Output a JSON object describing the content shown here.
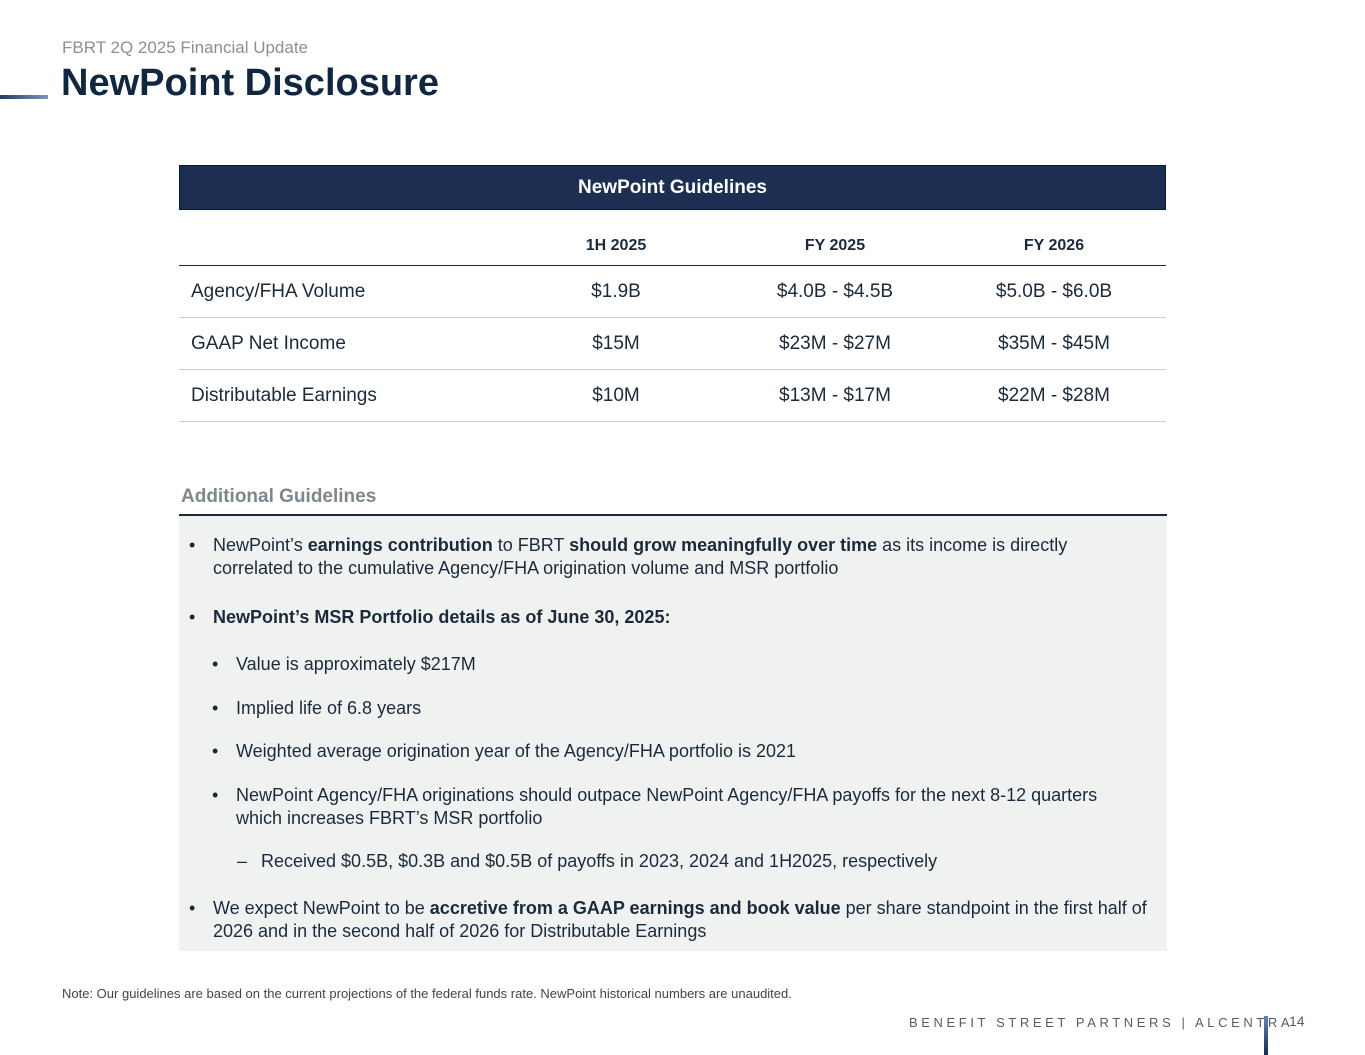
{
  "header": {
    "subtitle": "FBRT 2Q 2025 Financial Update",
    "title": "NewPoint Disclosure"
  },
  "table": {
    "title": "NewPoint Guidelines",
    "columns": [
      "",
      "1H 2025",
      "FY 2025",
      "FY 2026"
    ],
    "rows": [
      [
        "Agency/FHA Volume",
        "$1.9B",
        "$4.0B - $4.5B",
        "$5.0B - $6.0B"
      ],
      [
        "GAAP Net Income",
        "$15M",
        "$23M - $27M",
        "$35M - $45M"
      ],
      [
        "Distributable Earnings",
        "$10M",
        "$13M - $17M",
        "$22M - $28M"
      ]
    ]
  },
  "additional": {
    "title": "Additional Guidelines",
    "b1": [
      "NewPoint’s ",
      "earnings contribution",
      " to FBRT ",
      "should grow meaningfully over time",
      " as its income is directly correlated to the cumulative Agency/FHA origination volume and MSR portfolio"
    ],
    "b2": "NewPoint’s MSR Portfolio details as of June 30, 2025:",
    "sub": [
      "Value is approximately $217M",
      "Implied life of 6.8 years",
      "Weighted average origination year of the Agency/FHA portfolio is 2021",
      "NewPoint Agency/FHA originations should outpace NewPoint Agency/FHA payoffs for the next 8-12 quarters which increases FBRT’s MSR portfolio"
    ],
    "subsub": "Received $0.5B, $0.3B and $0.5B of payoffs in 2023, 2024 and 1H2025, respectively",
    "b3": [
      "We expect NewPoint to be ",
      "accretive from a GAAP earnings and book value",
      " per share standpoint in the first half of 2026 and in the second half of 2026 for Distributable Earnings"
    ]
  },
  "note": "Note: Our guidelines are based on the current projections of the federal funds rate. NewPoint historical numbers are unaudited.",
  "footer": {
    "brand": "BENEFIT STREET PARTNERS | ALCENTRA",
    "page": "14"
  }
}
